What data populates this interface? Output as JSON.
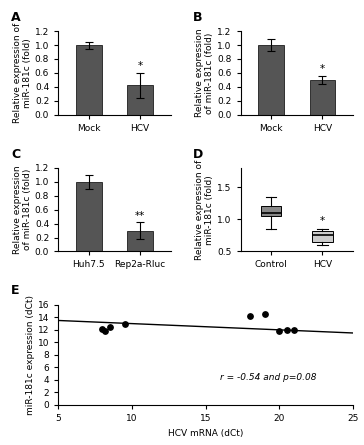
{
  "chart_data": [
    {
      "type": "bar",
      "title": "A",
      "categories": [
        "Mock",
        "HCV"
      ],
      "values": [
        1.0,
        0.42
      ],
      "errors": [
        0.05,
        0.18
      ],
      "ylabel": "Relative expression of\nmiR-181c (fold)",
      "ylim": [
        0,
        1.2
      ],
      "yticks": [
        {
          "value": 0,
          "label": "0.0"
        },
        0.2,
        0.4,
        0.6,
        0.8,
        {
          "value": 1,
          "label": "1.0"
        },
        1.2
      ],
      "color": "#555555",
      "annotations": [
        {
          "text": "*",
          "category": "HCV"
        }
      ]
    },
    {
      "type": "bar",
      "title": "B",
      "categories": [
        "Mock",
        "HCV"
      ],
      "values": [
        1.0,
        0.5
      ],
      "errors": [
        0.08,
        0.06
      ],
      "ylabel": "Relative expression\nof miR-181c (fold)",
      "ylim": [
        0,
        1.2
      ],
      "yticks": [
        {
          "value": 0,
          "label": "0.0"
        },
        0.2,
        0.4,
        0.6,
        0.8,
        {
          "value": 1,
          "label": "1.0"
        },
        1.2
      ],
      "color": "#555555",
      "annotations": [
        {
          "text": "*",
          "category": "HCV"
        }
      ]
    },
    {
      "type": "bar",
      "title": "C",
      "categories": [
        "Huh7.5",
        "Rep2a-Rluc"
      ],
      "values": [
        1.0,
        0.3
      ],
      "errors": [
        0.1,
        0.12
      ],
      "ylabel": "Relative expression\nof miR-181c (fold)",
      "ylim": [
        0,
        1.2
      ],
      "yticks": [
        {
          "value": 0,
          "label": "0.0"
        },
        0.2,
        0.4,
        0.6,
        0.8,
        {
          "value": 1,
          "label": "1.0"
        },
        1.2
      ],
      "color": "#555555",
      "annotations": [
        {
          "text": "**",
          "category": "Rep2a-Rluc"
        }
      ]
    },
    {
      "type": "box",
      "title": "D",
      "categories": [
        "Control",
        "HCV"
      ],
      "boxes": [
        {
          "q1": 1.05,
          "median": 1.1,
          "q3": 1.2,
          "whisker_low": 0.85,
          "whisker_high": 1.35
        },
        {
          "q1": 0.65,
          "median": 0.75,
          "q3": 0.82,
          "whisker_low": 0.6,
          "whisker_high": 0.85
        }
      ],
      "colors": [
        "#888888",
        "#cccccc"
      ],
      "ylabel": "Relative expression of\nmiR-181c (fold)",
      "ylim": [
        0.5,
        1.8
      ],
      "yticks": [
        0.5,
        {
          "value": 1,
          "label": "1.0"
        },
        1.5
      ],
      "annotations": [
        {
          "text": "*",
          "category": "HCV"
        }
      ]
    },
    {
      "type": "scatter",
      "title": "E",
      "xlabel": "HCV mRNA (dCt)",
      "ylabel": "miR-181c expression (dCt)",
      "xlim": [
        5,
        25
      ],
      "ylim": [
        0,
        16
      ],
      "xticks": [
        5,
        10,
        15,
        20,
        25
      ],
      "yticks": [
        0,
        2,
        4,
        6,
        8,
        10,
        12,
        14,
        16
      ],
      "series": [
        {
          "type": "scatter",
          "color": "#000000",
          "x": [
            8,
            8.2,
            8.5,
            9.5,
            18,
            19,
            20,
            20.5,
            21
          ],
          "values": [
            12.2,
            11.8,
            12.5,
            13.0,
            14.2,
            14.5,
            11.8,
            12.0,
            11.9
          ]
        },
        {
          "type": "line",
          "color": "#000000",
          "x": [
            5,
            25
          ],
          "values": [
            13.5,
            11.5
          ]
        }
      ],
      "annotations": [
        {
          "text": "r = -0.54 and p=0.08"
        }
      ]
    }
  ]
}
